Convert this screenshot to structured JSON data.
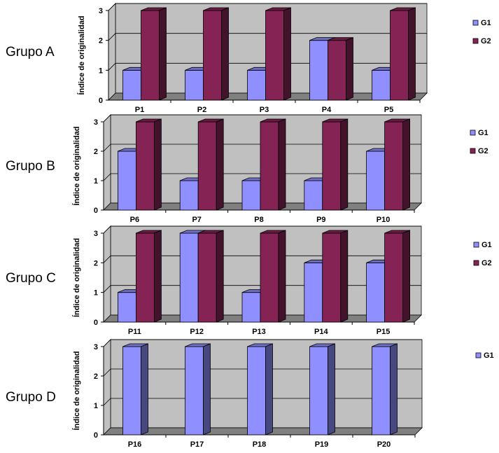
{
  "colors": {
    "G1": "#8f8fff",
    "G2": "#862355",
    "plot_bg": "#c0c0c0",
    "floor": "#808080"
  },
  "chart_data": [
    {
      "type": "bar",
      "group_label": "Grupo A",
      "ylabel": "Índice de originalidad",
      "categories": [
        "P1",
        "P2",
        "P3",
        "P4",
        "P5"
      ],
      "series": [
        {
          "name": "G1",
          "values": [
            1,
            1,
            1,
            2,
            1
          ]
        },
        {
          "name": "G2",
          "values": [
            3,
            3,
            3,
            2,
            3
          ]
        }
      ],
      "ylim": [
        0,
        3
      ],
      "yticks": [
        "0",
        "1",
        "2",
        "3"
      ],
      "grid": true,
      "legend": "right"
    },
    {
      "type": "bar",
      "group_label": "Grupo B",
      "ylabel": "Índice de originalidad",
      "categories": [
        "P6",
        "P7",
        "P8",
        "P9",
        "P10"
      ],
      "series": [
        {
          "name": "G1",
          "values": [
            2,
            1,
            1,
            1,
            2
          ]
        },
        {
          "name": "G2",
          "values": [
            3,
            3,
            3,
            3,
            3
          ]
        }
      ],
      "ylim": [
        0,
        3
      ],
      "yticks": [
        "0",
        "1",
        "2",
        "3"
      ],
      "grid": true,
      "legend": "right"
    },
    {
      "type": "bar",
      "group_label": "Grupo C",
      "ylabel": "Índice de originalidad",
      "categories": [
        "P11",
        "P12",
        "P13",
        "P14",
        "P15"
      ],
      "series": [
        {
          "name": "G1",
          "values": [
            1,
            3,
            1,
            2,
            2
          ]
        },
        {
          "name": "G2",
          "values": [
            3,
            3,
            3,
            3,
            3
          ]
        }
      ],
      "ylim": [
        0,
        3
      ],
      "yticks": [
        "0",
        "1",
        "2",
        "3"
      ],
      "grid": true,
      "legend": "right"
    },
    {
      "type": "bar",
      "group_label": "Grupo D",
      "ylabel": "Índice de originalidad",
      "categories": [
        "P16",
        "P17",
        "P18",
        "P19",
        "P20"
      ],
      "series": [
        {
          "name": "G1",
          "values": [
            3,
            3,
            3,
            3,
            3
          ]
        }
      ],
      "ylim": [
        0,
        3
      ],
      "yticks": [
        "0",
        "1",
        "2",
        "3"
      ],
      "grid": true,
      "legend": "right"
    }
  ]
}
